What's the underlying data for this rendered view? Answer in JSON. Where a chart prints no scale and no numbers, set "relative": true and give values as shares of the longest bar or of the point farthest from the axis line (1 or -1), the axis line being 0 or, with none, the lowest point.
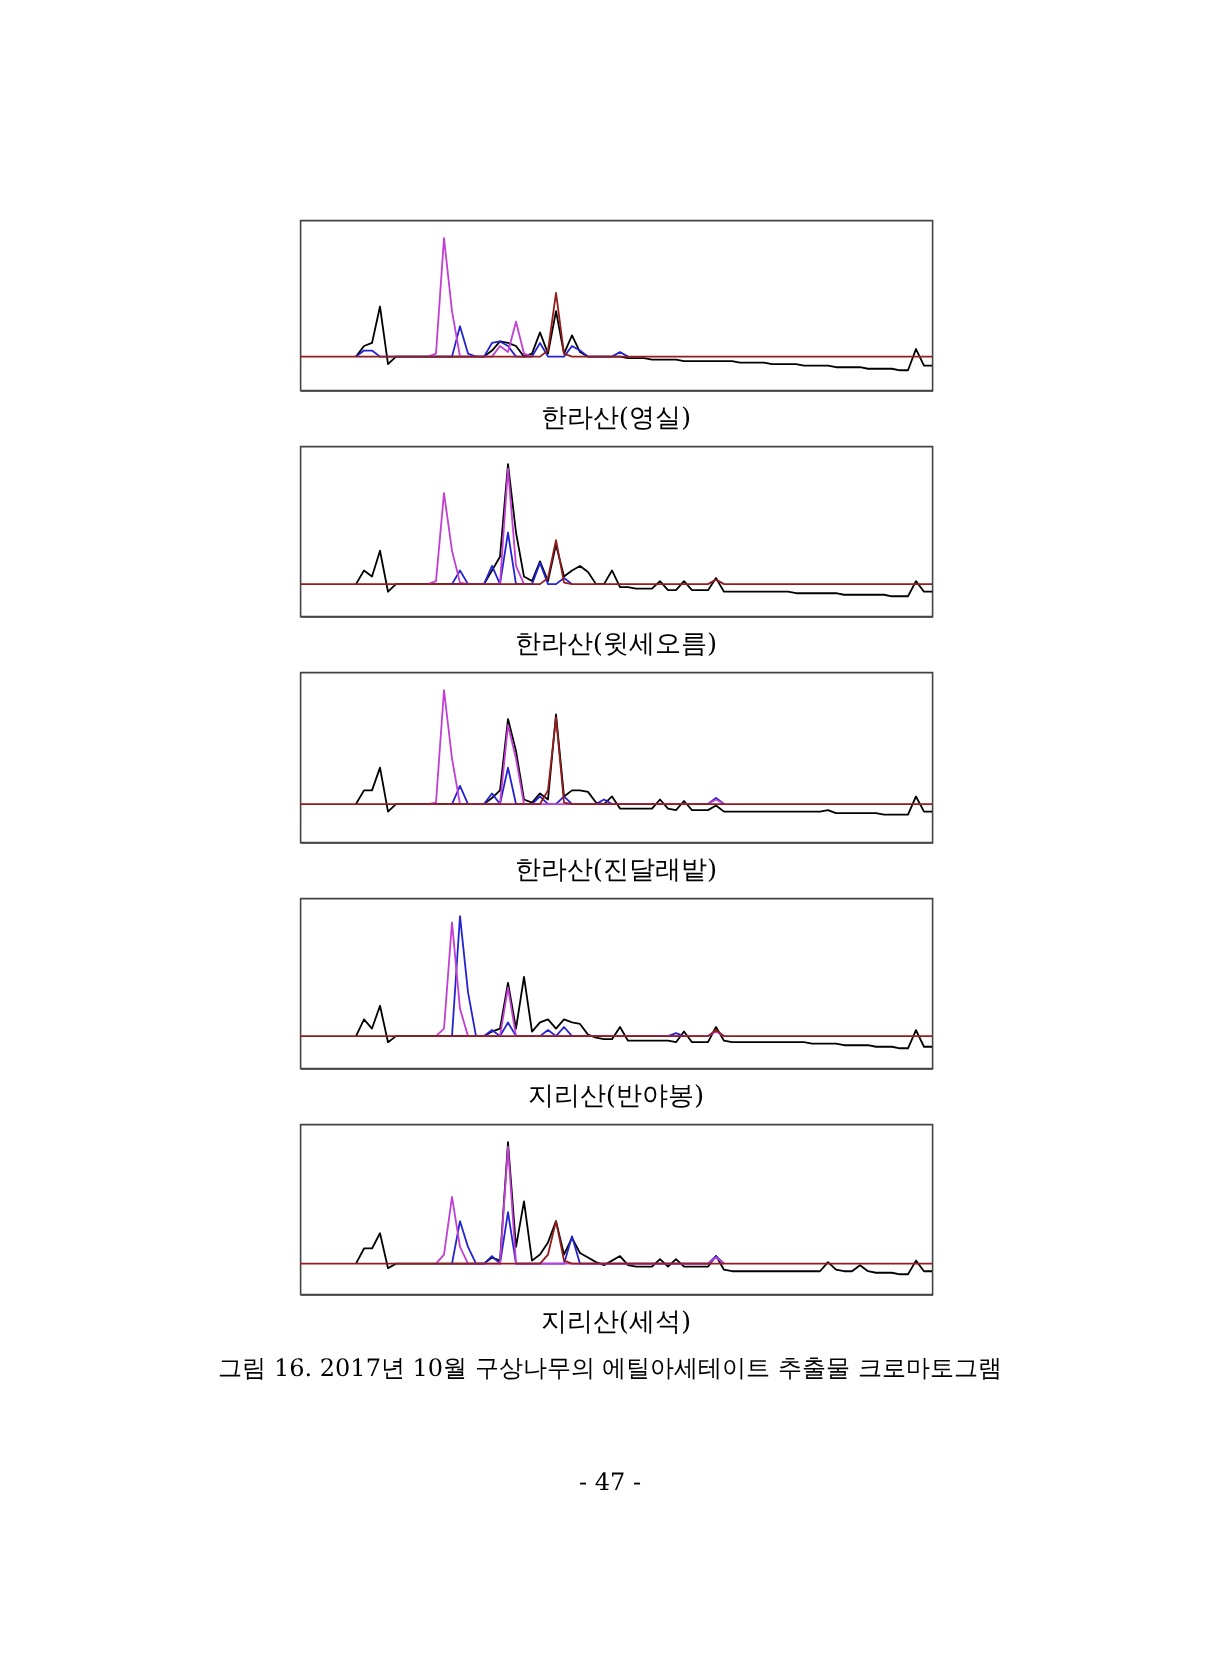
{
  "chart_data": [
    {
      "type": "line",
      "title": "한라산(영실)",
      "relative": true,
      "categories": [
        null,
        null,
        null,
        null,
        null,
        null,
        null,
        null,
        null,
        null,
        null,
        null,
        null,
        null,
        null,
        null,
        null,
        null,
        null,
        null,
        null,
        null,
        null,
        null,
        null,
        null,
        null,
        null,
        null,
        null,
        null,
        null,
        null,
        null,
        null,
        null,
        null,
        null,
        null,
        null,
        null,
        null,
        null,
        null,
        null,
        null,
        null,
        null,
        null,
        null,
        null,
        null,
        null,
        null,
        null,
        null,
        null,
        null,
        null,
        null,
        null,
        null,
        null,
        null,
        null,
        null,
        null,
        null,
        null,
        null,
        null,
        null,
        null,
        null,
        null,
        null,
        null,
        null,
        null,
        null
      ],
      "series": [
        {
          "color": "#000000",
          "values": [
            null,
            null,
            null,
            null,
            null,
            null,
            null,
            0.22,
            0.29,
            0.31,
            0.55,
            0.17,
            0.22,
            null,
            null,
            null,
            null,
            null,
            null,
            null,
            null,
            null,
            null,
            0.22,
            0.26,
            0.32,
            0.31,
            0.29,
            0.22,
            0.24,
            0.38,
            0.24,
            0.52,
            0.24,
            0.36,
            0.25,
            0.22,
            null,
            null,
            null,
            0.22,
            0.21,
            0.21,
            0.21,
            0.2,
            0.2,
            0.2,
            0.2,
            0.19,
            0.19,
            0.19,
            0.19,
            0.19,
            0.19,
            0.19,
            0.18,
            0.18,
            0.18,
            0.18,
            0.17,
            0.17,
            0.17,
            0.17,
            0.16,
            0.16,
            0.16,
            0.16,
            0.15,
            0.15,
            0.15,
            0.15,
            0.14,
            0.14,
            0.14,
            0.14,
            0.13,
            0.13,
            0.27,
            0.16,
            0.16
          ]
        },
        {
          "color": "#2323cf",
          "values": [
            null,
            null,
            null,
            null,
            null,
            null,
            null,
            0.22,
            0.26,
            0.26,
            0.22,
            null,
            null,
            null,
            null,
            null,
            null,
            null,
            null,
            0.22,
            0.42,
            0.24,
            0.22,
            0.22,
            0.31,
            0.32,
            0.29,
            0.22,
            null,
            0.22,
            0.31,
            0.22,
            null,
            0.22,
            0.29,
            0.26,
            0.22,
            null,
            null,
            0.22,
            0.25,
            0.22,
            null,
            null,
            null,
            null,
            null,
            null,
            null,
            null,
            null,
            null,
            null,
            null,
            null,
            null,
            null,
            null,
            null,
            null,
            null,
            null,
            null,
            null,
            null,
            null,
            null,
            null,
            null,
            null,
            null,
            null,
            null,
            null,
            null,
            null,
            null,
            null,
            null,
            null
          ]
        },
        {
          "color": "#c23fd4",
          "values": [
            null,
            null,
            null,
            null,
            null,
            null,
            null,
            null,
            null,
            null,
            null,
            null,
            null,
            null,
            null,
            null,
            0.22,
            0.24,
            1,
            0.52,
            0.22,
            null,
            null,
            null,
            0.22,
            0.29,
            0.25,
            0.45,
            0.24,
            0.22,
            null,
            null,
            null,
            null,
            null,
            null,
            null,
            null,
            null,
            null,
            null,
            null,
            null,
            null,
            null,
            null,
            null,
            null,
            null,
            null,
            null,
            null,
            null,
            null,
            null,
            null,
            null,
            null,
            null,
            null,
            null,
            null,
            null,
            null,
            null,
            null,
            null,
            null,
            null,
            null,
            null,
            null,
            null,
            null,
            null,
            null,
            null,
            null,
            null,
            null
          ]
        },
        {
          "color": "#931c1c",
          "values": [
            0.22,
            0.22,
            0.22,
            0.22,
            0.22,
            0.22,
            0.22,
            0.22,
            0.22,
            0.22,
            0.22,
            0.22,
            0.22,
            0.22,
            0.22,
            0.22,
            0.22,
            0.22,
            0.22,
            0.22,
            0.22,
            0.22,
            0.22,
            0.22,
            0.22,
            0.22,
            0.22,
            0.22,
            0.22,
            0.22,
            0.22,
            0.26,
            0.64,
            0.24,
            0.22,
            0.22,
            0.22,
            0.22,
            0.22,
            0.22,
            0.22,
            0.22,
            0.22,
            0.22,
            0.22,
            0.22,
            0.22,
            0.22,
            0.22,
            0.22,
            0.22,
            0.22,
            0.22,
            0.22,
            0.22,
            0.22,
            0.22,
            0.22,
            0.22,
            0.22,
            0.22,
            0.22,
            0.22,
            0.22,
            0.22,
            0.22,
            0.22,
            0.22,
            0.22,
            0.22,
            0.22,
            0.22,
            0.22,
            0.22,
            0.22,
            0.22,
            0.22,
            0.22,
            0.22,
            0.22
          ]
        }
      ]
    },
    {
      "type": "line",
      "title": "한라산(윗세오름)",
      "relative": true,
      "categories": [
        null,
        null,
        null,
        null,
        null,
        null,
        null,
        null,
        null,
        null,
        null,
        null,
        null,
        null,
        null,
        null,
        null,
        null,
        null,
        null,
        null,
        null,
        null,
        null,
        null,
        null,
        null,
        null,
        null,
        null,
        null,
        null,
        null,
        null,
        null,
        null,
        null,
        null,
        null,
        null,
        null,
        null,
        null,
        null,
        null,
        null,
        null,
        null,
        null,
        null,
        null,
        null,
        null,
        null,
        null,
        null,
        null,
        null,
        null,
        null,
        null,
        null,
        null,
        null,
        null,
        null,
        null,
        null,
        null,
        null,
        null,
        null,
        null,
        null,
        null,
        null,
        null,
        null,
        null,
        null
      ],
      "series": [
        {
          "color": "#000000",
          "values": [
            null,
            null,
            null,
            null,
            null,
            null,
            null,
            0.21,
            0.3,
            0.26,
            0.43,
            0.16,
            0.21,
            null,
            null,
            null,
            null,
            null,
            null,
            null,
            null,
            null,
            null,
            0.21,
            0.3,
            0.39,
            1,
            0.55,
            0.26,
            0.23,
            0.36,
            0.23,
            0.47,
            0.26,
            0.3,
            0.33,
            0.29,
            0.21,
            0.21,
            0.3,
            0.19,
            0.19,
            0.18,
            0.18,
            0.18,
            0.23,
            0.17,
            0.17,
            0.23,
            0.17,
            0.17,
            0.17,
            0.25,
            0.16,
            0.16,
            0.16,
            0.16,
            0.16,
            0.16,
            0.16,
            0.16,
            0.16,
            0.15,
            0.15,
            0.15,
            0.15,
            0.15,
            0.15,
            0.14,
            0.14,
            0.14,
            0.14,
            0.14,
            0.14,
            0.13,
            0.13,
            0.13,
            0.23,
            0.16,
            0.16
          ]
        },
        {
          "color": "#2323cf",
          "values": [
            null,
            null,
            null,
            null,
            null,
            null,
            null,
            null,
            null,
            null,
            null,
            null,
            null,
            null,
            null,
            null,
            null,
            null,
            null,
            0.21,
            0.3,
            0.21,
            null,
            0.21,
            0.33,
            0.21,
            0.55,
            0.21,
            null,
            0.21,
            0.35,
            0.21,
            0.21,
            0.25,
            0.21,
            null,
            null,
            null,
            null,
            null,
            null,
            null,
            null,
            null,
            null,
            null,
            null,
            null,
            null,
            null,
            null,
            null,
            null,
            null,
            null,
            null,
            null,
            null,
            null,
            null,
            null,
            null,
            null,
            null,
            null,
            null,
            null,
            null,
            null,
            null,
            null,
            null,
            null,
            null,
            null,
            null,
            null,
            null,
            null,
            null
          ]
        },
        {
          "color": "#c23fd4",
          "values": [
            null,
            null,
            null,
            null,
            null,
            null,
            null,
            null,
            null,
            null,
            null,
            null,
            null,
            null,
            null,
            null,
            0.21,
            0.23,
            0.81,
            0.43,
            0.22,
            0.21,
            null,
            null,
            null,
            0.21,
            0.97,
            0.33,
            0.21,
            null,
            null,
            null,
            null,
            null,
            null,
            null,
            null,
            null,
            null,
            null,
            null,
            null,
            null,
            null,
            null,
            null,
            null,
            null,
            null,
            null,
            null,
            null,
            null,
            null,
            null,
            null,
            null,
            null,
            null,
            null,
            null,
            null,
            null,
            null,
            null,
            null,
            null,
            null,
            null,
            null,
            null,
            null,
            null,
            null,
            null,
            null,
            null,
            null,
            null,
            null
          ]
        },
        {
          "color": "#931c1c",
          "values": [
            0.21,
            0.21,
            0.21,
            0.21,
            0.21,
            0.21,
            0.21,
            0.21,
            0.21,
            0.21,
            0.21,
            0.21,
            0.21,
            0.21,
            0.21,
            0.21,
            0.21,
            0.21,
            0.21,
            0.21,
            0.21,
            0.21,
            0.21,
            0.21,
            0.21,
            0.21,
            0.21,
            0.21,
            0.21,
            0.21,
            0.21,
            0.25,
            0.5,
            0.22,
            0.21,
            0.21,
            0.21,
            0.21,
            0.21,
            0.21,
            0.21,
            0.21,
            0.21,
            0.21,
            0.21,
            0.21,
            0.21,
            0.21,
            0.21,
            0.21,
            0.21,
            0.21,
            0.24,
            0.21,
            0.21,
            0.21,
            0.21,
            0.21,
            0.21,
            0.21,
            0.21,
            0.21,
            0.21,
            0.21,
            0.21,
            0.21,
            0.21,
            0.21,
            0.21,
            0.21,
            0.21,
            0.21,
            0.21,
            0.21,
            0.21,
            0.21,
            0.21,
            0.21,
            0.21,
            0.21
          ]
        }
      ]
    },
    {
      "type": "line",
      "title": "한라산(진달래밭)",
      "relative": true,
      "categories": [
        null,
        null,
        null,
        null,
        null,
        null,
        null,
        null,
        null,
        null,
        null,
        null,
        null,
        null,
        null,
        null,
        null,
        null,
        null,
        null,
        null,
        null,
        null,
        null,
        null,
        null,
        null,
        null,
        null,
        null,
        null,
        null,
        null,
        null,
        null,
        null,
        null,
        null,
        null,
        null,
        null,
        null,
        null,
        null,
        null,
        null,
        null,
        null,
        null,
        null,
        null,
        null,
        null,
        null,
        null,
        null,
        null,
        null,
        null,
        null,
        null,
        null,
        null,
        null,
        null,
        null,
        null,
        null,
        null,
        null,
        null,
        null,
        null,
        null,
        null,
        null,
        null,
        null,
        null,
        null
      ],
      "series": [
        {
          "color": "#000000",
          "values": [
            null,
            null,
            null,
            null,
            null,
            null,
            null,
            0.25,
            0.34,
            0.34,
            0.49,
            0.2,
            0.25,
            null,
            null,
            null,
            null,
            null,
            null,
            null,
            null,
            null,
            null,
            0.25,
            0.29,
            0.34,
            0.81,
            0.6,
            0.28,
            0.26,
            0.32,
            0.28,
            0.84,
            0.3,
            0.34,
            0.34,
            0.33,
            0.26,
            0.25,
            0.3,
            0.22,
            0.22,
            0.22,
            0.22,
            0.22,
            0.28,
            0.22,
            0.21,
            0.27,
            0.21,
            0.21,
            0.21,
            0.24,
            0.2,
            0.2,
            0.2,
            0.2,
            0.2,
            0.2,
            0.2,
            0.2,
            0.2,
            0.2,
            0.2,
            0.2,
            0.2,
            0.21,
            0.19,
            0.19,
            0.19,
            0.19,
            0.19,
            0.19,
            0.18,
            0.18,
            0.18,
            0.18,
            0.3,
            0.2,
            0.2
          ]
        },
        {
          "color": "#2323cf",
          "values": [
            null,
            null,
            null,
            null,
            null,
            null,
            null,
            null,
            null,
            null,
            null,
            null,
            null,
            null,
            null,
            null,
            null,
            null,
            null,
            0.25,
            0.37,
            0.25,
            null,
            0.25,
            0.32,
            0.25,
            0.49,
            0.25,
            null,
            0.25,
            0.3,
            0.25,
            0.25,
            0.3,
            0.25,
            null,
            null,
            0.25,
            0.28,
            0.25,
            null,
            null,
            null,
            null,
            null,
            null,
            null,
            null,
            null,
            null,
            null,
            0.25,
            0.29,
            0.25,
            null,
            null,
            null,
            null,
            null,
            null,
            null,
            null,
            null,
            null,
            null,
            null,
            null,
            null,
            null,
            null,
            null,
            null,
            null,
            null,
            null,
            null,
            null,
            null,
            null,
            null
          ]
        },
        {
          "color": "#c23fd4",
          "values": [
            null,
            null,
            null,
            null,
            null,
            null,
            null,
            null,
            null,
            null,
            null,
            null,
            null,
            null,
            null,
            null,
            0.25,
            0.26,
            1,
            0.55,
            0.25,
            null,
            null,
            null,
            null,
            0.25,
            0.77,
            0.55,
            0.25,
            null,
            null,
            null,
            null,
            null,
            null,
            null,
            null,
            null,
            null,
            null,
            null,
            null,
            null,
            null,
            null,
            null,
            null,
            null,
            null,
            null,
            null,
            0.25,
            0.28,
            0.25,
            null,
            null,
            null,
            null,
            null,
            null,
            null,
            null,
            null,
            null,
            null,
            null,
            null,
            null,
            null,
            null,
            null,
            null,
            null,
            null,
            null,
            null,
            null,
            null,
            null,
            null
          ]
        },
        {
          "color": "#931c1c",
          "values": [
            0.25,
            0.25,
            0.25,
            0.25,
            0.25,
            0.25,
            0.25,
            0.25,
            0.25,
            0.25,
            0.25,
            0.25,
            0.25,
            0.25,
            0.25,
            0.25,
            0.25,
            0.25,
            0.25,
            0.25,
            0.25,
            0.25,
            0.25,
            0.25,
            0.25,
            0.25,
            0.25,
            0.25,
            0.25,
            0.25,
            0.25,
            0.34,
            0.82,
            0.26,
            0.25,
            0.25,
            0.25,
            0.25,
            0.25,
            0.25,
            0.25,
            0.25,
            0.25,
            0.25,
            0.25,
            0.25,
            0.25,
            0.25,
            0.25,
            0.25,
            0.25,
            0.25,
            0.25,
            0.25,
            0.25,
            0.25,
            0.25,
            0.25,
            0.25,
            0.25,
            0.25,
            0.25,
            0.25,
            0.25,
            0.25,
            0.25,
            0.25,
            0.25,
            0.25,
            0.25,
            0.25,
            0.25,
            0.25,
            0.25,
            0.25,
            0.25,
            0.25,
            0.25,
            0.25,
            0.25
          ]
        }
      ]
    },
    {
      "type": "line",
      "title": "지리산(반야봉)",
      "relative": true,
      "categories": [
        null,
        null,
        null,
        null,
        null,
        null,
        null,
        null,
        null,
        null,
        null,
        null,
        null,
        null,
        null,
        null,
        null,
        null,
        null,
        null,
        null,
        null,
        null,
        null,
        null,
        null,
        null,
        null,
        null,
        null,
        null,
        null,
        null,
        null,
        null,
        null,
        null,
        null,
        null,
        null,
        null,
        null,
        null,
        null,
        null,
        null,
        null,
        null,
        null,
        null,
        null,
        null,
        null,
        null,
        null,
        null,
        null,
        null,
        null,
        null,
        null,
        null,
        null,
        null,
        null,
        null,
        null,
        null,
        null,
        null,
        null,
        null,
        null,
        null,
        null,
        null,
        null,
        null,
        null,
        null
      ],
      "series": [
        {
          "color": "#000000",
          "values": [
            null,
            null,
            null,
            null,
            null,
            null,
            null,
            0.21,
            0.32,
            0.26,
            0.41,
            0.17,
            0.21,
            null,
            null,
            null,
            null,
            null,
            null,
            null,
            null,
            null,
            null,
            0.21,
            0.24,
            0.26,
            0.56,
            0.26,
            0.6,
            0.24,
            0.3,
            0.32,
            0.26,
            0.32,
            0.3,
            0.29,
            0.22,
            0.2,
            0.19,
            0.19,
            0.27,
            0.18,
            0.18,
            0.18,
            0.18,
            0.18,
            0.18,
            0.17,
            0.24,
            0.17,
            0.17,
            0.17,
            0.27,
            0.18,
            0.17,
            0.17,
            0.17,
            0.17,
            0.17,
            0.17,
            0.17,
            0.17,
            0.17,
            0.17,
            0.16,
            0.16,
            0.16,
            0.16,
            0.15,
            0.15,
            0.15,
            0.15,
            0.14,
            0.14,
            0.14,
            0.13,
            0.13,
            0.25,
            0.14,
            0.14
          ]
        },
        {
          "color": "#2323cf",
          "values": [
            null,
            null,
            null,
            null,
            null,
            null,
            null,
            null,
            null,
            null,
            null,
            null,
            null,
            null,
            null,
            null,
            null,
            null,
            null,
            0.21,
            1,
            0.5,
            0.21,
            0.21,
            0.25,
            0.21,
            0.3,
            0.21,
            null,
            null,
            0.21,
            0.25,
            0.21,
            0.27,
            0.21,
            null,
            null,
            null,
            null,
            null,
            null,
            null,
            null,
            null,
            null,
            null,
            0.21,
            0.23,
            0.21,
            null,
            null,
            null,
            null,
            null,
            null,
            null,
            null,
            null,
            null,
            null,
            null,
            null,
            null,
            null,
            null,
            null,
            null,
            null,
            null,
            null,
            null,
            null,
            null,
            null,
            null,
            null,
            null,
            null,
            null,
            null
          ]
        },
        {
          "color": "#c23fd4",
          "values": [
            null,
            null,
            null,
            null,
            null,
            null,
            null,
            null,
            null,
            null,
            null,
            null,
            null,
            null,
            null,
            null,
            null,
            0.21,
            0.26,
            0.96,
            0.39,
            0.21,
            null,
            null,
            null,
            0.21,
            0.53,
            0.21,
            null,
            null,
            null,
            null,
            null,
            null,
            null,
            null,
            null,
            null,
            null,
            null,
            null,
            null,
            null,
            null,
            null,
            null,
            null,
            null,
            null,
            null,
            null,
            0.21,
            0.24,
            0.21,
            null,
            null,
            null,
            null,
            null,
            null,
            null,
            null,
            null,
            null,
            null,
            null,
            null,
            null,
            null,
            null,
            null,
            null,
            null,
            null,
            null,
            null,
            null,
            null,
            null,
            null
          ]
        },
        {
          "color": "#931c1c",
          "values": [
            0.21,
            0.21,
            0.21,
            0.21,
            0.21,
            0.21,
            0.21,
            0.21,
            0.21,
            0.21,
            0.21,
            0.21,
            0.21,
            0.21,
            0.21,
            0.21,
            0.21,
            0.21,
            0.21,
            0.21,
            0.21,
            0.21,
            0.21,
            0.21,
            0.21,
            0.21,
            0.21,
            0.21,
            0.21,
            0.21,
            0.21,
            0.21,
            0.21,
            0.21,
            0.21,
            0.21,
            0.21,
            0.21,
            0.21,
            0.21,
            0.21,
            0.21,
            0.21,
            0.21,
            0.21,
            0.21,
            0.21,
            0.21,
            0.21,
            0.21,
            0.21,
            0.21,
            0.25,
            0.21,
            0.21,
            0.21,
            0.21,
            0.21,
            0.21,
            0.21,
            0.21,
            0.21,
            0.21,
            0.21,
            0.21,
            0.21,
            0.21,
            0.21,
            0.21,
            0.21,
            0.21,
            0.21,
            0.21,
            0.21,
            0.21,
            0.21,
            0.21,
            0.21,
            0.21,
            0.21
          ]
        }
      ]
    },
    {
      "type": "line",
      "title": "지리산(세석)",
      "relative": true,
      "categories": [
        null,
        null,
        null,
        null,
        null,
        null,
        null,
        null,
        null,
        null,
        null,
        null,
        null,
        null,
        null,
        null,
        null,
        null,
        null,
        null,
        null,
        null,
        null,
        null,
        null,
        null,
        null,
        null,
        null,
        null,
        null,
        null,
        null,
        null,
        null,
        null,
        null,
        null,
        null,
        null,
        null,
        null,
        null,
        null,
        null,
        null,
        null,
        null,
        null,
        null,
        null,
        null,
        null,
        null,
        null,
        null,
        null,
        null,
        null,
        null,
        null,
        null,
        null,
        null,
        null,
        null,
        null,
        null,
        null,
        null,
        null,
        null,
        null,
        null,
        null,
        null,
        null,
        null,
        null,
        null
      ],
      "series": [
        {
          "color": "#000000",
          "values": [
            null,
            null,
            null,
            null,
            null,
            null,
            null,
            0.2,
            0.3,
            0.3,
            0.4,
            0.17,
            0.2,
            null,
            null,
            null,
            null,
            null,
            null,
            null,
            null,
            null,
            null,
            0.2,
            0.24,
            0.22,
            1,
            0.31,
            0.61,
            0.22,
            0.26,
            0.34,
            0.48,
            0.26,
            0.37,
            0.27,
            0.24,
            0.21,
            0.19,
            0.22,
            0.25,
            0.19,
            0.18,
            0.18,
            0.18,
            0.23,
            0.18,
            0.23,
            0.18,
            0.18,
            0.18,
            0.18,
            0.25,
            0.16,
            0.15,
            0.15,
            0.15,
            0.15,
            0.15,
            0.15,
            0.15,
            0.15,
            0.15,
            0.15,
            0.15,
            0.15,
            0.21,
            0.16,
            0.15,
            0.15,
            0.19,
            0.15,
            0.14,
            0.14,
            0.14,
            0.13,
            0.13,
            0.22,
            0.15,
            0.15
          ]
        },
        {
          "color": "#2323cf",
          "values": [
            null,
            null,
            null,
            null,
            null,
            null,
            null,
            null,
            null,
            null,
            null,
            null,
            null,
            null,
            null,
            null,
            null,
            null,
            null,
            0.2,
            0.48,
            0.31,
            0.2,
            0.2,
            0.25,
            0.2,
            0.54,
            0.2,
            null,
            null,
            null,
            null,
            null,
            0.2,
            0.38,
            0.2,
            null,
            null,
            null,
            null,
            null,
            null,
            null,
            null,
            null,
            null,
            null,
            null,
            null,
            null,
            null,
            0.2,
            0.25,
            0.2,
            null,
            null,
            null,
            null,
            null,
            null,
            null,
            null,
            null,
            null,
            null,
            null,
            null,
            null,
            null,
            null,
            null,
            null,
            null,
            null,
            null,
            null,
            null,
            null,
            null,
            null
          ]
        },
        {
          "color": "#c23fd4",
          "values": [
            null,
            null,
            null,
            null,
            null,
            null,
            null,
            null,
            null,
            null,
            null,
            null,
            null,
            null,
            null,
            null,
            null,
            0.2,
            0.26,
            0.64,
            0.31,
            0.2,
            null,
            null,
            null,
            0.2,
            0.97,
            0.2,
            null,
            null,
            null,
            null,
            null,
            null,
            null,
            null,
            null,
            null,
            null,
            null,
            null,
            null,
            null,
            null,
            null,
            null,
            null,
            null,
            null,
            null,
            null,
            0.2,
            0.24,
            0.2,
            null,
            null,
            null,
            null,
            null,
            null,
            null,
            null,
            null,
            null,
            null,
            null,
            null,
            null,
            null,
            null,
            null,
            null,
            null,
            null,
            null,
            null,
            null,
            null,
            null,
            null
          ]
        },
        {
          "color": "#931c1c",
          "values": [
            0.2,
            0.2,
            0.2,
            0.2,
            0.2,
            0.2,
            0.2,
            0.2,
            0.2,
            0.2,
            0.2,
            0.2,
            0.2,
            0.2,
            0.2,
            0.2,
            0.2,
            0.2,
            0.2,
            0.2,
            0.2,
            0.2,
            0.2,
            0.2,
            0.2,
            0.2,
            0.2,
            0.2,
            0.2,
            0.2,
            0.2,
            0.26,
            0.48,
            0.22,
            0.2,
            0.2,
            0.2,
            0.2,
            0.2,
            0.2,
            0.2,
            0.2,
            0.2,
            0.2,
            0.2,
            0.2,
            0.2,
            0.2,
            0.2,
            0.2,
            0.2,
            0.2,
            0.2,
            0.2,
            0.2,
            0.2,
            0.2,
            0.2,
            0.2,
            0.2,
            0.2,
            0.2,
            0.2,
            0.2,
            0.2,
            0.2,
            0.2,
            0.2,
            0.2,
            0.2,
            0.2,
            0.2,
            0.2,
            0.2,
            0.2,
            0.2,
            0.2,
            0.2,
            0.2,
            0.2
          ]
        }
      ]
    },
    {
      "type": "other",
      "annotations": [
        "그림 16. 2017년 10월 구상나무의 에틸아세테이트 추출물 크로마토그램",
        "- 47 -"
      ]
    }
  ]
}
